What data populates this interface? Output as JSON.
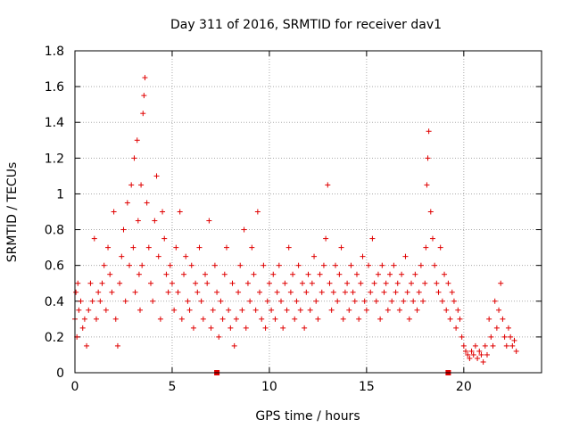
{
  "chart_data": {
    "type": "scatter",
    "title": "Day 311 of 2016, SRMTID for receiver dav1",
    "xlabel": "GPS time / hours",
    "ylabel": "SRMTID / TECUs",
    "xlim": [
      0,
      24
    ],
    "ylim": [
      0,
      1.8
    ],
    "xticks": [
      0,
      5,
      10,
      15,
      20
    ],
    "yticks": [
      0,
      0.2,
      0.4,
      0.6,
      0.8,
      1,
      1.2,
      1.4,
      1.6,
      1.8
    ],
    "xtick_labels": [
      "0",
      "5",
      "10",
      "15",
      "20"
    ],
    "ytick_labels": [
      "0",
      "0.2",
      "0.4",
      "0.6",
      "0.8",
      "1",
      "1.2",
      "1.4",
      "1.6",
      "1.8"
    ],
    "grid": true,
    "marker": "+",
    "marker_color": "#e00000",
    "series": [
      {
        "name": "SRMTID",
        "x": [
          0.0,
          0.05,
          0.1,
          0.15,
          0.2,
          0.3,
          0.4,
          0.5,
          0.6,
          0.7,
          0.8,
          0.9,
          1.0,
          1.1,
          1.2,
          1.3,
          1.4,
          1.5,
          1.6,
          1.7,
          1.8,
          1.9,
          2.0,
          2.1,
          2.2,
          2.3,
          2.4,
          2.5,
          2.6,
          2.7,
          2.8,
          2.9,
          3.0,
          3.05,
          3.1,
          3.2,
          3.25,
          3.3,
          3.35,
          3.4,
          3.45,
          3.5,
          3.55,
          3.6,
          3.7,
          3.8,
          3.9,
          4.0,
          4.1,
          4.2,
          4.3,
          4.4,
          4.5,
          4.6,
          4.7,
          4.8,
          4.9,
          5.0,
          5.1,
          5.2,
          5.3,
          5.4,
          5.5,
          5.6,
          5.7,
          5.8,
          5.9,
          6.0,
          6.1,
          6.2,
          6.3,
          6.4,
          6.5,
          6.6,
          6.7,
          6.8,
          6.9,
          7.0,
          7.1,
          7.2,
          7.3,
          7.4,
          7.5,
          7.6,
          7.7,
          7.8,
          7.9,
          8.0,
          8.1,
          8.2,
          8.3,
          8.4,
          8.5,
          8.6,
          8.7,
          8.8,
          8.9,
          9.0,
          9.1,
          9.2,
          9.3,
          9.4,
          9.5,
          9.6,
          9.7,
          9.8,
          9.9,
          10.0,
          10.1,
          10.2,
          10.3,
          10.4,
          10.5,
          10.6,
          10.7,
          10.8,
          10.9,
          11.0,
          11.1,
          11.2,
          11.3,
          11.4,
          11.5,
          11.6,
          11.7,
          11.8,
          11.9,
          12.0,
          12.1,
          12.2,
          12.3,
          12.4,
          12.5,
          12.6,
          12.7,
          12.8,
          12.9,
          13.0,
          13.1,
          13.2,
          13.3,
          13.4,
          13.5,
          13.6,
          13.7,
          13.8,
          13.9,
          14.0,
          14.1,
          14.2,
          14.3,
          14.4,
          14.5,
          14.6,
          14.7,
          14.8,
          14.9,
          15.0,
          15.1,
          15.2,
          15.3,
          15.4,
          15.5,
          15.6,
          15.7,
          15.8,
          15.9,
          16.0,
          16.1,
          16.2,
          16.3,
          16.4,
          16.5,
          16.6,
          16.7,
          16.8,
          16.9,
          17.0,
          17.1,
          17.2,
          17.3,
          17.4,
          17.5,
          17.6,
          17.7,
          17.8,
          17.9,
          18.0,
          18.05,
          18.1,
          18.15,
          18.2,
          18.3,
          18.4,
          18.5,
          18.6,
          18.7,
          18.8,
          18.9,
          19.0,
          19.1,
          19.2,
          19.3,
          19.4,
          19.5,
          19.6,
          19.7,
          19.8,
          19.9,
          20.0,
          20.1,
          20.2,
          20.3,
          20.4,
          20.5,
          20.6,
          20.7,
          20.8,
          20.9,
          21.0,
          21.1,
          21.2,
          21.3,
          21.4,
          21.5,
          21.6,
          21.7,
          21.8,
          21.9,
          22.0,
          22.1,
          22.2,
          22.3,
          22.4,
          22.5,
          22.6,
          22.7
        ],
        "y": [
          0.3,
          0.45,
          0.2,
          0.5,
          0.35,
          0.4,
          0.25,
          0.3,
          0.15,
          0.35,
          0.5,
          0.4,
          0.75,
          0.3,
          0.45,
          0.4,
          0.5,
          0.6,
          0.35,
          0.7,
          0.55,
          0.45,
          0.9,
          0.3,
          0.15,
          0.5,
          0.65,
          0.8,
          0.4,
          0.95,
          0.6,
          1.05,
          0.7,
          1.2,
          0.45,
          1.3,
          0.85,
          0.55,
          0.35,
          1.05,
          0.6,
          1.45,
          1.55,
          1.65,
          0.95,
          0.7,
          0.5,
          0.4,
          0.85,
          1.1,
          0.65,
          0.3,
          0.9,
          0.75,
          0.55,
          0.45,
          0.6,
          0.5,
          0.35,
          0.7,
          0.45,
          0.9,
          0.3,
          0.55,
          0.65,
          0.4,
          0.35,
          0.6,
          0.25,
          0.5,
          0.45,
          0.7,
          0.4,
          0.3,
          0.55,
          0.5,
          0.85,
          0.25,
          0.35,
          0.6,
          0.45,
          0.2,
          0.4,
          0.3,
          0.55,
          0.7,
          0.35,
          0.25,
          0.5,
          0.15,
          0.3,
          0.45,
          0.6,
          0.35,
          0.8,
          0.25,
          0.5,
          0.4,
          0.7,
          0.55,
          0.35,
          0.9,
          0.45,
          0.3,
          0.6,
          0.25,
          0.4,
          0.5,
          0.35,
          0.55,
          0.3,
          0.45,
          0.6,
          0.4,
          0.25,
          0.5,
          0.35,
          0.7,
          0.45,
          0.55,
          0.3,
          0.4,
          0.6,
          0.35,
          0.5,
          0.25,
          0.45,
          0.55,
          0.35,
          0.5,
          0.65,
          0.4,
          0.3,
          0.55,
          0.45,
          0.6,
          0.75,
          1.05,
          0.5,
          0.35,
          0.45,
          0.6,
          0.4,
          0.55,
          0.7,
          0.3,
          0.45,
          0.5,
          0.35,
          0.6,
          0.45,
          0.4,
          0.55,
          0.3,
          0.5,
          0.65,
          0.4,
          0.35,
          0.6,
          0.45,
          0.75,
          0.5,
          0.4,
          0.55,
          0.3,
          0.6,
          0.45,
          0.5,
          0.35,
          0.55,
          0.4,
          0.6,
          0.45,
          0.5,
          0.35,
          0.55,
          0.4,
          0.65,
          0.45,
          0.3,
          0.5,
          0.4,
          0.55,
          0.35,
          0.45,
          0.6,
          0.4,
          0.5,
          0.7,
          1.05,
          1.2,
          1.35,
          0.9,
          0.75,
          0.6,
          0.5,
          0.45,
          0.7,
          0.4,
          0.55,
          0.35,
          0.5,
          0.3,
          0.45,
          0.4,
          0.25,
          0.35,
          0.3,
          0.2,
          0.15,
          0.12,
          0.1,
          0.08,
          0.12,
          0.1,
          0.15,
          0.08,
          0.12,
          0.1,
          0.06,
          0.15,
          0.1,
          0.3,
          0.2,
          0.15,
          0.4,
          0.25,
          0.35,
          0.5,
          0.3,
          0.2,
          0.15,
          0.25,
          0.2,
          0.15,
          0.18,
          0.12
        ]
      }
    ],
    "reference_points": {
      "x": [
        7.3,
        19.2
      ],
      "y": [
        0,
        0
      ]
    }
  }
}
